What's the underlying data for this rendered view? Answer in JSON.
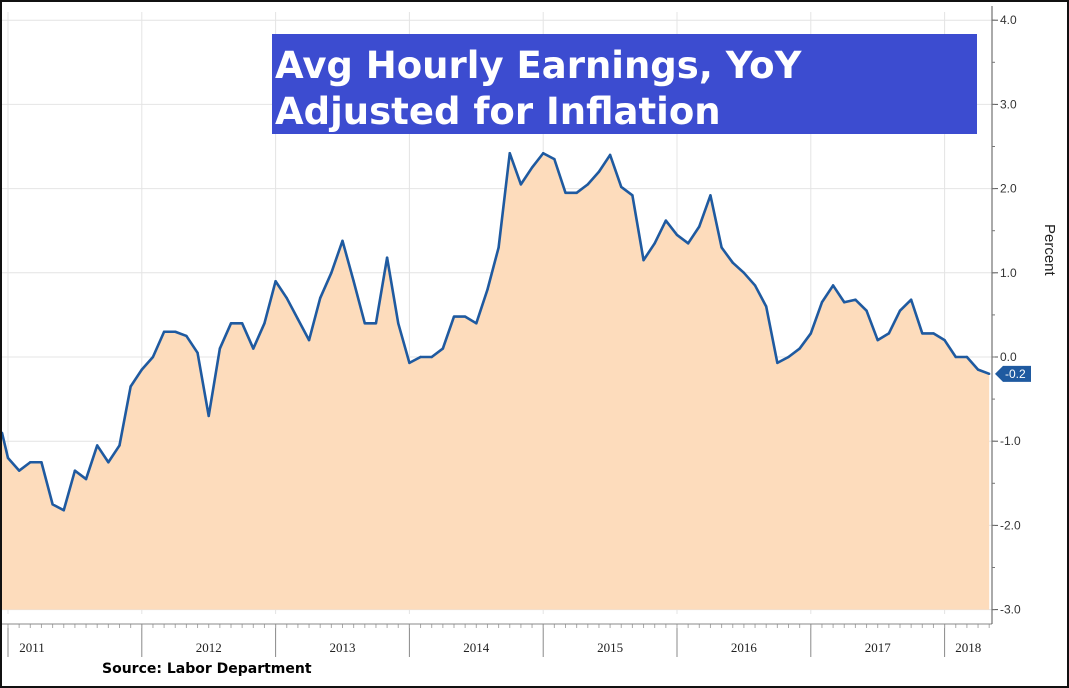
{
  "chart_data": {
    "type": "area",
    "title": [
      "Avg Hourly Earnings, YoY",
      "Adjusted for Inflation"
    ],
    "ylabel": "Percent",
    "xlabel": "",
    "source": "Source: Labor Department",
    "ylim": [
      -3.0,
      4.0
    ],
    "yticks": [
      -3.0,
      -2.0,
      -1.0,
      0.0,
      1.0,
      2.0,
      3.0,
      4.0
    ],
    "ytick_labels": [
      "-3.0",
      "-2.0",
      "-1.0",
      "0.0",
      "1.0",
      "2.0",
      "3.0",
      "4.0"
    ],
    "x_start": "2011-01",
    "x_end": "2018-05",
    "year_labels": [
      "2011",
      "2012",
      "2013",
      "2014",
      "2015",
      "2016",
      "2017",
      "2018"
    ],
    "grid": true,
    "last_value_label": "-0.2",
    "colors": {
      "line": "#1f5aa0",
      "fill": "#fddcbc",
      "title_box": "#3c4cd0",
      "badge": "#1f5aa0"
    },
    "series": [
      {
        "x": [
          "2010-12",
          "2011-01",
          "2011-02",
          "2011-03",
          "2011-04",
          "2011-05",
          "2011-06",
          "2011-07",
          "2011-08",
          "2011-09",
          "2011-10",
          "2011-11",
          "2011-12",
          "2012-01",
          "2012-02",
          "2012-03",
          "2012-04",
          "2012-05",
          "2012-06",
          "2012-07",
          "2012-08",
          "2012-09",
          "2012-10",
          "2012-11",
          "2012-12",
          "2013-01",
          "2013-02",
          "2013-03",
          "2013-04",
          "2013-05",
          "2013-06",
          "2013-07",
          "2013-08",
          "2013-09",
          "2013-10",
          "2013-11",
          "2013-12",
          "2014-01",
          "2014-02",
          "2014-03",
          "2014-04",
          "2014-05",
          "2014-06",
          "2014-07",
          "2014-08",
          "2014-09",
          "2014-10",
          "2014-11",
          "2014-12",
          "2015-01",
          "2015-02",
          "2015-03",
          "2015-04",
          "2015-05",
          "2015-06",
          "2015-07",
          "2015-08",
          "2015-09",
          "2015-10",
          "2015-11",
          "2015-12",
          "2016-01",
          "2016-02",
          "2016-03",
          "2016-04",
          "2016-05",
          "2016-06",
          "2016-07",
          "2016-08",
          "2016-09",
          "2016-10",
          "2016-11",
          "2016-12",
          "2017-01",
          "2017-02",
          "2017-03",
          "2017-04",
          "2017-05",
          "2017-06",
          "2017-07",
          "2017-08",
          "2017-09",
          "2017-10",
          "2017-11",
          "2017-12",
          "2018-01",
          "2018-02",
          "2018-03",
          "2018-04",
          "2018-05"
        ],
        "values": [
          -0.9,
          -1.2,
          -1.35,
          -1.25,
          -1.25,
          -1.75,
          -1.82,
          -1.35,
          -1.45,
          -1.05,
          -1.25,
          -1.05,
          -0.35,
          -0.15,
          0.0,
          0.3,
          0.3,
          0.25,
          0.05,
          -0.7,
          0.1,
          0.4,
          0.4,
          0.1,
          0.4,
          0.9,
          0.7,
          0.45,
          0.2,
          0.7,
          1.0,
          1.38,
          0.9,
          0.4,
          0.4,
          1.18,
          0.4,
          -0.07,
          0.0,
          0.0,
          0.1,
          0.48,
          0.48,
          0.4,
          0.8,
          1.3,
          2.42,
          2.05,
          2.25,
          2.42,
          2.35,
          1.95,
          1.95,
          2.05,
          2.2,
          2.4,
          2.02,
          1.92,
          1.15,
          1.35,
          1.62,
          1.45,
          1.35,
          1.55,
          1.92,
          1.3,
          1.12,
          1.0,
          0.85,
          0.6,
          -0.07,
          0.0,
          0.1,
          0.28,
          0.65,
          0.85,
          0.65,
          0.68,
          0.55,
          0.2,
          0.28,
          0.55,
          0.68,
          0.28,
          0.28,
          0.2,
          0.0,
          0.0,
          -0.15,
          -0.2
        ]
      }
    ]
  }
}
